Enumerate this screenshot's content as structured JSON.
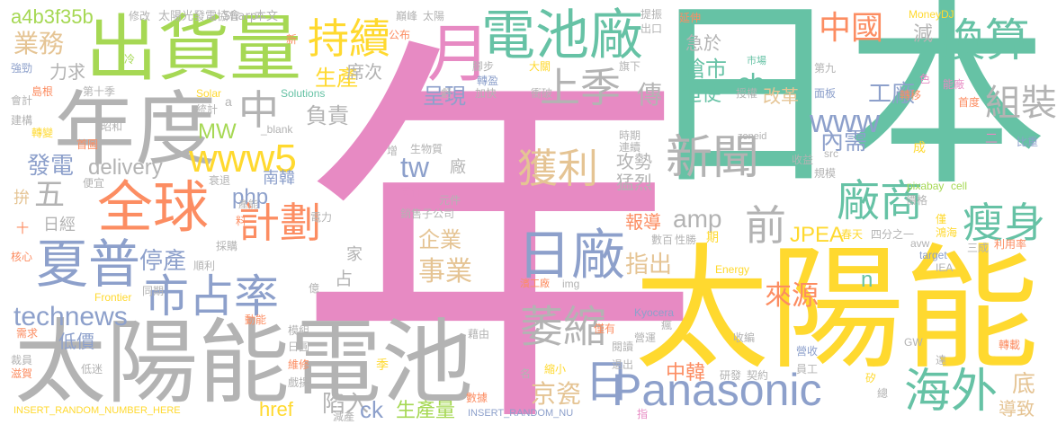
{
  "words": [
    {
      "text": "年",
      "color": "#E78AC3"
    },
    {
      "text": "日本",
      "color": "#66C2A5"
    },
    {
      "text": "太陽能",
      "color": "#FFD92F"
    },
    {
      "text": "太陽能電池",
      "color": "#B3B3B3"
    },
    {
      "text": "出貨量",
      "color": "#A6D854"
    },
    {
      "text": "年度",
      "color": "#B3B3B3"
    },
    {
      "text": "電池廠",
      "color": "#66C2A5"
    },
    {
      "text": "全球",
      "color": "#FC8D62"
    },
    {
      "text": "Panasonic",
      "color": "#8DA0CB"
    },
    {
      "text": "月",
      "color": "#E78AC3"
    },
    {
      "text": "上季",
      "color": "#B3B3B3"
    },
    {
      "text": "持續",
      "color": "#FFD92F"
    },
    {
      "text": "www5",
      "color": "#FFD92F"
    },
    {
      "text": "中國",
      "color": "#FC8D62"
    },
    {
      "text": "換算",
      "color": "#66C2A5"
    },
    {
      "text": "新聞",
      "color": "#B3B3B3"
    },
    {
      "text": "獲利",
      "color": "#E5C494"
    },
    {
      "text": "廠商",
      "color": "#66C2A5"
    },
    {
      "text": "瘦身",
      "color": "#66C2A5"
    },
    {
      "text": "日廠",
      "color": "#8DA0CB"
    },
    {
      "text": "計劃",
      "color": "#FC8D62"
    },
    {
      "text": "夏普",
      "color": "#8DA0CB"
    },
    {
      "text": "市占率",
      "color": "#8DA0CB"
    },
    {
      "text": "萎縮",
      "color": "#B3B3B3"
    },
    {
      "text": "海外",
      "color": "#66C2A5"
    },
    {
      "text": "technews",
      "color": "#8DA0CB"
    },
    {
      "text": "前",
      "color": "#B3B3B3"
    },
    {
      "text": "delivery",
      "color": "#B3B3B3"
    },
    {
      "text": "tw",
      "color": "#8DA0CB"
    },
    {
      "text": "www",
      "color": "#8DA0CB"
    },
    {
      "text": "組裝",
      "color": "#B3B3B3"
    },
    {
      "text": "中",
      "color": "#B3B3B3"
    },
    {
      "text": "停產",
      "color": "#8DA0CB"
    },
    {
      "text": "業務",
      "color": "#E5C494"
    },
    {
      "text": "a4b3f35b",
      "color": "#A6D854"
    },
    {
      "text": "發電",
      "color": "#8DA0CB"
    },
    {
      "text": "五",
      "color": "#B3B3B3"
    },
    {
      "text": "MW",
      "color": "#A6D854"
    },
    {
      "text": "php",
      "color": "#8DA0CB"
    },
    {
      "text": "amp",
      "color": "#B3B3B3"
    },
    {
      "text": "JPEA",
      "color": "#FFD92F"
    },
    {
      "text": "企業",
      "color": "#E5C494"
    },
    {
      "text": "事業",
      "color": "#E5C494"
    },
    {
      "text": "指出",
      "color": "#E5C494"
    },
    {
      "text": "來源",
      "color": "#FC8D62"
    },
    {
      "text": "京瓷",
      "color": "#E5C494"
    },
    {
      "text": "日",
      "color": "#8DA0CB"
    },
    {
      "text": "中韓",
      "color": "#FC8D62"
    },
    {
      "text": "生產量",
      "color": "#A6D854"
    },
    {
      "text": "底",
      "color": "#E5C494"
    },
    {
      "text": "導致",
      "color": "#E5C494"
    },
    {
      "text": "cb",
      "color": "#66C2A5"
    },
    {
      "text": "工廠",
      "color": "#8DA0CB"
    },
    {
      "text": "內需",
      "color": "#8DA0CB"
    },
    {
      "text": "搶市",
      "color": "#66C2A5"
    },
    {
      "text": "迫使",
      "color": "#66C2A5"
    },
    {
      "text": "改革",
      "color": "#E5C494"
    },
    {
      "text": "急於",
      "color": "#B3B3B3"
    },
    {
      "text": "減",
      "color": "#B3B3B3"
    },
    {
      "text": "負責",
      "color": "#B3B3B3"
    },
    {
      "text": "呈現",
      "color": "#8DA0CB"
    },
    {
      "text": "生產",
      "color": "#FFD92F"
    },
    {
      "text": "席次",
      "color": "#B3B3B3"
    },
    {
      "text": "傳",
      "color": "#B3B3B3"
    },
    {
      "text": "攻勢",
      "color": "#B3B3B3"
    },
    {
      "text": "猛烈",
      "color": "#B3B3B3"
    },
    {
      "text": "報導",
      "color": "#FC8D62"
    },
    {
      "text": "陷入",
      "color": "#B3B3B3"
    },
    {
      "text": "低價",
      "color": "#8DA0CB"
    },
    {
      "text": "href",
      "color": "#FFD92F"
    },
    {
      "text": "ck",
      "color": "#8DA0CB"
    },
    {
      "text": "力求",
      "color": "#B3B3B3"
    },
    {
      "text": "拚",
      "color": "#E5C494"
    },
    {
      "text": "日經",
      "color": "#B3B3B3"
    },
    {
      "text": "南韓",
      "color": "#8DA0CB"
    },
    {
      "text": "家",
      "color": "#B3B3B3"
    },
    {
      "text": "占",
      "color": "#B3B3B3"
    },
    {
      "text": "n",
      "color": "#66C2A5"
    },
    {
      "text": "太陽光發電協會",
      "color": "#B3B3B3"
    },
    {
      "text": "Sharp",
      "color": "#B3B3B3"
    },
    {
      "text": "本文",
      "color": "#B3B3B3"
    },
    {
      "text": "MoneyDJ",
      "color": "#FFD92F"
    },
    {
      "text": "修改",
      "color": "#B3B3B3"
    },
    {
      "text": "巔峰",
      "color": "#B3B3B3"
    },
    {
      "text": "太陽",
      "color": "#B3B3B3"
    },
    {
      "text": "提振",
      "color": "#B3B3B3"
    },
    {
      "text": "出口",
      "color": "#B3B3B3"
    },
    {
      "text": "延伸",
      "color": "#FC8D62"
    },
    {
      "text": "公布",
      "color": "#FC8D62"
    },
    {
      "text": "新",
      "color": "#FC8D62"
    },
    {
      "text": "冷",
      "color": "#A6D854"
    },
    {
      "text": "強勁",
      "color": "#8DA0CB"
    },
    {
      "text": "島根",
      "color": "#FC8D62"
    },
    {
      "text": "會計",
      "color": "#B3B3B3"
    },
    {
      "text": "建構",
      "color": "#B3B3B3"
    },
    {
      "text": "轉變",
      "color": "#FFD92F"
    },
    {
      "text": "第十季",
      "color": "#B3B3B3"
    },
    {
      "text": "Solar",
      "color": "#FFD92F"
    },
    {
      "text": "Solutions",
      "color": "#66C2A5"
    },
    {
      "text": "統計",
      "color": "#B3B3B3"
    },
    {
      "text": "a",
      "color": "#B3B3B3"
    },
    {
      "text": "昭和",
      "color": "#B3B3B3"
    },
    {
      "text": "_blank",
      "color": "#B3B3B3"
    },
    {
      "text": "首圖",
      "color": "#FC8D62"
    },
    {
      "text": "腳步",
      "color": "#B3B3B3"
    },
    {
      "text": "大關",
      "color": "#FFD92F"
    },
    {
      "text": "旗下",
      "color": "#B3B3B3"
    },
    {
      "text": "轉盈",
      "color": "#8DA0CB"
    },
    {
      "text": "加快",
      "color": "#B3B3B3"
    },
    {
      "text": "衝破",
      "color": "#B3B3B3"
    },
    {
      "text": "虧",
      "color": "#B3B3B3"
    },
    {
      "text": "授權",
      "color": "#B3B3B3"
    },
    {
      "text": "市場",
      "color": "#66C2A5"
    },
    {
      "text": "第九",
      "color": "#B3B3B3"
    },
    {
      "text": "面板",
      "color": "#8DA0CB"
    },
    {
      "text": "轉移",
      "color": "#FC8D62"
    },
    {
      "text": "能廠",
      "color": "#E78AC3"
    },
    {
      "text": "首度",
      "color": "#FC8D62"
    },
    {
      "text": "色",
      "color": "#E78AC3"
    },
    {
      "text": "比重",
      "color": "#8DA0CB"
    },
    {
      "text": "二",
      "color": "#E78AC3"
    },
    {
      "text": "成",
      "color": "#FFD92F"
    },
    {
      "text": "收益",
      "color": "#B3B3B3"
    },
    {
      "text": "規模",
      "color": "#B3B3B3"
    },
    {
      "text": "pixabay",
      "color": "#A6D854"
    },
    {
      "text": "cell",
      "color": "#A6D854"
    },
    {
      "text": "價格",
      "color": "#B3B3B3"
    },
    {
      "text": "僅",
      "color": "#FFD92F"
    },
    {
      "text": "鴻海",
      "color": "#FFD92F"
    },
    {
      "text": "avw",
      "color": "#B3B3B3"
    },
    {
      "text": "春天",
      "color": "#FFD92F"
    },
    {
      "text": "四分之一",
      "color": "#B3B3B3"
    },
    {
      "text": "利用率",
      "color": "#FC8D62"
    },
    {
      "text": "三成",
      "color": "#B3B3B3"
    },
    {
      "text": "target",
      "color": "#8DA0CB"
    },
    {
      "text": "IEA",
      "color": "#B3B3B3"
    },
    {
      "text": "Energy",
      "color": "#FFD92F"
    },
    {
      "text": "zoneid",
      "color": "#B3B3B3"
    },
    {
      "text": "src",
      "color": "#B3B3B3"
    },
    {
      "text": "時期",
      "color": "#B3B3B3"
    },
    {
      "text": "連續",
      "color": "#B3B3B3"
    },
    {
      "text": "生物質",
      "color": "#B3B3B3"
    },
    {
      "text": "零件",
      "color": "#E78AC3"
    },
    {
      "text": "元件",
      "color": "#B3B3B3"
    },
    {
      "text": "銷售子公司",
      "color": "#B3B3B3"
    },
    {
      "text": "數百",
      "color": "#B3B3B3"
    },
    {
      "text": "性勝",
      "color": "#B3B3B3"
    },
    {
      "text": "期",
      "color": "#FFD92F"
    },
    {
      "text": "Kyocera",
      "color": "#8DA0CB"
    },
    {
      "text": "img",
      "color": "#B3B3B3"
    },
    {
      "text": "濱工廠",
      "color": "#FC8D62"
    },
    {
      "text": "瘋",
      "color": "#B3B3B3"
    },
    {
      "text": "收編",
      "color": "#B3B3B3"
    },
    {
      "text": "營運",
      "color": "#B3B3B3"
    },
    {
      "text": "僅有",
      "color": "#FC8D62"
    },
    {
      "text": "閱讀",
      "color": "#B3B3B3"
    },
    {
      "text": "退出",
      "color": "#B3B3B3"
    },
    {
      "text": "研發",
      "color": "#B3B3B3"
    },
    {
      "text": "契約",
      "color": "#B3B3B3"
    },
    {
      "text": "營收",
      "color": "#8DA0CB"
    },
    {
      "text": "員工",
      "color": "#B3B3B3"
    },
    {
      "text": "GW",
      "color": "#B3B3B3"
    },
    {
      "text": "轉載",
      "color": "#FC8D62"
    },
    {
      "text": "達",
      "color": "#B3B3B3"
    },
    {
      "text": "矽",
      "color": "#FFD92F"
    },
    {
      "text": "總",
      "color": "#B3B3B3"
    },
    {
      "text": "指",
      "color": "#E78AC3"
    },
    {
      "text": "縮小",
      "color": "#FFD92F"
    },
    {
      "text": "名",
      "color": "#B3B3B3"
    },
    {
      "text": "數據",
      "color": "#FC8D62"
    },
    {
      "text": "藉由",
      "color": "#B3B3B3"
    },
    {
      "text": "INSERT_RANDOM_NU",
      "color": "#8DA0CB"
    },
    {
      "text": "減產",
      "color": "#B3B3B3"
    },
    {
      "text": "季",
      "color": "#FFD92F"
    },
    {
      "text": "戲揚",
      "color": "#B3B3B3"
    },
    {
      "text": "維修",
      "color": "#FC8D62"
    },
    {
      "text": "日圓",
      "color": "#B3B3B3"
    },
    {
      "text": "模組",
      "color": "#B3B3B3"
    },
    {
      "text": "動能",
      "color": "#FC8D62"
    },
    {
      "text": "低迷",
      "color": "#B3B3B3"
    },
    {
      "text": "INSERT_RANDOM_NUMBER_HERE",
      "color": "#FFD92F"
    },
    {
      "text": "滋賀",
      "color": "#FC8D62"
    },
    {
      "text": "裁員",
      "color": "#B3B3B3"
    },
    {
      "text": "需求",
      "color": "#FC8D62"
    },
    {
      "text": "Frontier",
      "color": "#FFD92F"
    },
    {
      "text": "同期",
      "color": "#B3B3B3"
    },
    {
      "text": "核心",
      "color": "#FC8D62"
    },
    {
      "text": "順利",
      "color": "#B3B3B3"
    },
    {
      "text": "採購",
      "color": "#B3B3B3"
    },
    {
      "text": "億",
      "color": "#B3B3B3"
    },
    {
      "text": "增",
      "color": "#B3B3B3"
    },
    {
      "text": "電力",
      "color": "#B3B3B3"
    },
    {
      "text": "料",
      "color": "#FC8D62"
    },
    {
      "text": "產能",
      "color": "#B3B3B3"
    },
    {
      "text": "衰退",
      "color": "#B3B3B3"
    },
    {
      "text": "便宜",
      "color": "#B3B3B3"
    },
    {
      "text": "十",
      "color": "#FC8D62"
    },
    {
      "text": "廠",
      "color": "#B3B3B3"
    }
  ]
}
